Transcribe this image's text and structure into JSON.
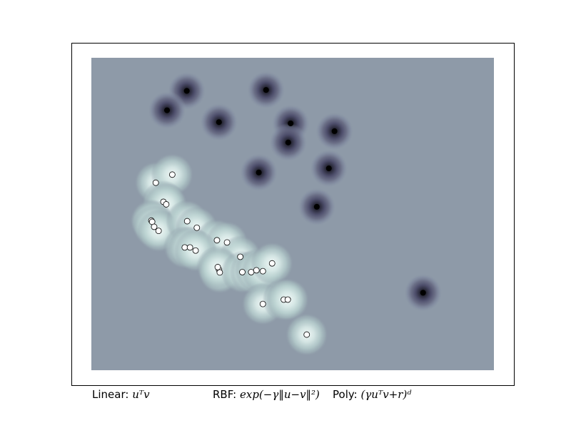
{
  "chart_data": {
    "type": "scatter",
    "title": "",
    "xlabel": "",
    "ylabel": "",
    "xlim": [
      0,
      1
    ],
    "ylim": [
      0,
      1
    ],
    "grid": false,
    "axis_ticks": "none",
    "colors": {
      "background_field": "#8e9aa8",
      "positive_core": "#000000",
      "positive_glow": "#5a5a7a",
      "negative_glow": "#e6f2f0",
      "marker_fill": "#ffffff",
      "marker_edge": "#000000",
      "frame": "#000000"
    },
    "series": [
      {
        "style": "dark decision-function peaks",
        "points": [
          {
            "x": 0.237,
            "y": 0.894
          },
          {
            "x": 0.188,
            "y": 0.832
          },
          {
            "x": 0.434,
            "y": 0.897
          },
          {
            "x": 0.317,
            "y": 0.794
          },
          {
            "x": 0.495,
            "y": 0.79
          },
          {
            "x": 0.489,
            "y": 0.729
          },
          {
            "x": 0.604,
            "y": 0.765
          },
          {
            "x": 0.416,
            "y": 0.633
          },
          {
            "x": 0.59,
            "y": 0.646
          },
          {
            "x": 0.56,
            "y": 0.523
          },
          {
            "x": 0.824,
            "y": 0.248
          }
        ]
      },
      {
        "style": "white circle markers on light halos",
        "points": [
          {
            "x": 0.16,
            "y": 0.6
          },
          {
            "x": 0.201,
            "y": 0.626
          },
          {
            "x": 0.179,
            "y": 0.539
          },
          {
            "x": 0.186,
            "y": 0.531
          },
          {
            "x": 0.149,
            "y": 0.479
          },
          {
            "x": 0.151,
            "y": 0.475
          },
          {
            "x": 0.156,
            "y": 0.459
          },
          {
            "x": 0.167,
            "y": 0.446
          },
          {
            "x": 0.238,
            "y": 0.477
          },
          {
            "x": 0.262,
            "y": 0.456
          },
          {
            "x": 0.312,
            "y": 0.416
          },
          {
            "x": 0.337,
            "y": 0.409
          },
          {
            "x": 0.232,
            "y": 0.393
          },
          {
            "x": 0.245,
            "y": 0.393
          },
          {
            "x": 0.259,
            "y": 0.383
          },
          {
            "x": 0.37,
            "y": 0.363
          },
          {
            "x": 0.317,
            "y": 0.322
          },
          {
            "x": 0.319,
            "y": 0.313
          },
          {
            "x": 0.314,
            "y": 0.33
          },
          {
            "x": 0.375,
            "y": 0.314
          },
          {
            "x": 0.397,
            "y": 0.314
          },
          {
            "x": 0.41,
            "y": 0.32
          },
          {
            "x": 0.426,
            "y": 0.317
          },
          {
            "x": 0.449,
            "y": 0.342
          },
          {
            "x": 0.426,
            "y": 0.212
          },
          {
            "x": 0.478,
            "y": 0.226
          },
          {
            "x": 0.488,
            "y": 0.226
          },
          {
            "x": 0.535,
            "y": 0.114
          }
        ]
      }
    ]
  },
  "captions": {
    "linear_name": "Linear:",
    "linear_formula": "uᵀv",
    "rbf_name": "RBF:",
    "rbf_formula": "exp(−γ‖u−v‖²)",
    "poly_name": "Poly:",
    "poly_formula": "(γuᵀv+r)ᵈ"
  }
}
